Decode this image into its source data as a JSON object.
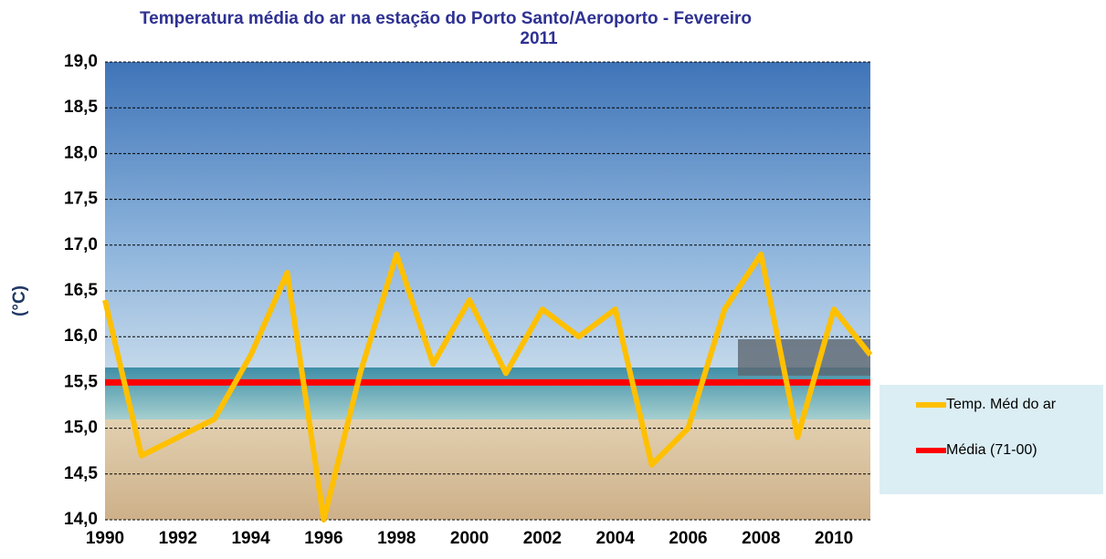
{
  "chart_data": {
    "type": "line",
    "title": [
      "Temperatura média do ar na estação do Porto Santo/Aeroporto - Fevereiro",
      "2011"
    ],
    "y_label": "(°C)",
    "x": [
      1990,
      1991,
      1992,
      1993,
      1994,
      1995,
      1996,
      1997,
      1998,
      1999,
      2000,
      2001,
      2002,
      2003,
      2004,
      2005,
      2006,
      2007,
      2008,
      2009,
      2010,
      2011
    ],
    "series": [
      {
        "name": "Temp. Méd do ar",
        "color": "#ffc000",
        "values": [
          16.4,
          14.7,
          14.9,
          15.1,
          15.8,
          16.7,
          14.0,
          15.6,
          16.9,
          15.7,
          16.4,
          15.6,
          16.3,
          16.0,
          16.3,
          14.6,
          15.0,
          16.3,
          16.9,
          14.9,
          16.3,
          15.8
        ]
      },
      {
        "name": "Média (71-00)",
        "color": "#ff0000",
        "value": 15.5
      }
    ],
    "xlim": [
      1990,
      2011
    ],
    "xticks": [
      1990,
      1992,
      1994,
      1996,
      1998,
      2000,
      2002,
      2004,
      2006,
      2008,
      2010
    ],
    "ylim": [
      14.0,
      19.0
    ],
    "yticks": [
      {
        "value": 14.0,
        "label": "14,0"
      },
      {
        "value": 14.5,
        "label": "14,5"
      },
      {
        "value": 15.0,
        "label": "15,0"
      },
      {
        "value": 15.5,
        "label": "15,5"
      },
      {
        "value": 16.0,
        "label": "16,0"
      },
      {
        "value": 16.5,
        "label": "16,5"
      },
      {
        "value": 17.0,
        "label": "17,0"
      },
      {
        "value": 17.5,
        "label": "17,5"
      },
      {
        "value": 18.0,
        "label": "18,0"
      },
      {
        "value": 18.5,
        "label": "18,5"
      },
      {
        "value": 19.0,
        "label": "19,0"
      }
    ],
    "grid": true
  }
}
